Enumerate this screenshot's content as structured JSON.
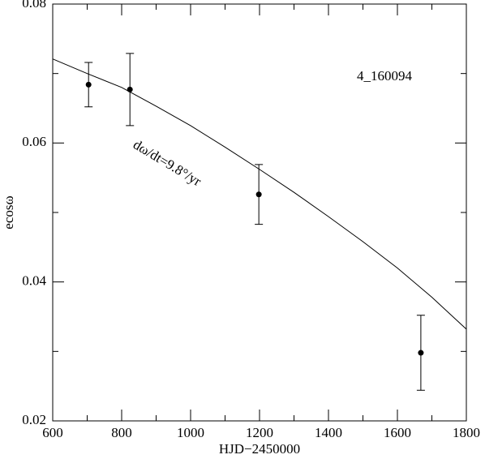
{
  "chart_data": {
    "type": "scatter",
    "x_label": "HJD−2450000",
    "y_label": "ecosω",
    "annotations": [
      "4_160094",
      "dω/dt=9.8°/yr"
    ],
    "xlim": [
      600,
      1800
    ],
    "ylim": [
      0.02,
      0.08
    ],
    "xticks": [
      600,
      800,
      1000,
      1200,
      1400,
      1600,
      1800
    ],
    "yticks": [
      0.02,
      0.04,
      0.06,
      0.08
    ],
    "xminor_ticks": [
      700,
      900,
      1100,
      1300,
      1500,
      1700
    ],
    "yminor_ticks": [
      0.03,
      0.05,
      0.07
    ],
    "color": "#000000",
    "points": {
      "x": [
        704,
        824,
        1198,
        1668
      ],
      "values": [
        0.0684,
        0.0677,
        0.0526,
        0.0298
      ],
      "errors": [
        0.0032,
        0.0052,
        0.0043,
        0.0054
      ]
    },
    "model": {
      "x": [
        600,
        700,
        800,
        900,
        1000,
        1100,
        1200,
        1300,
        1400,
        1500,
        1600,
        1700,
        1800
      ],
      "values": [
        0.0721,
        0.07,
        0.068,
        0.0653,
        0.0625,
        0.0594,
        0.0562,
        0.0529,
        0.0494,
        0.0458,
        0.042,
        0.0378,
        0.0332
      ]
    }
  }
}
